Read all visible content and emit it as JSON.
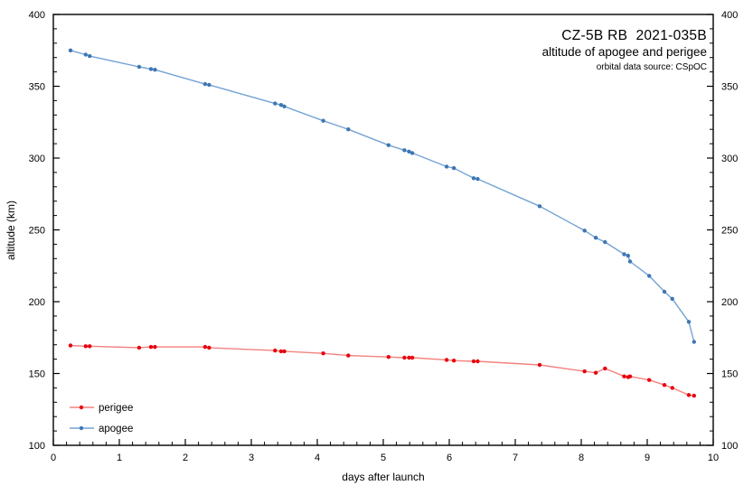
{
  "chart_data": {
    "type": "line",
    "title": "CZ-5B RB  2021-035B",
    "subtitle": "altitude of apogee and perigee",
    "source_note": "orbital data source: CSpOC",
    "xlabel": "days after launch",
    "ylabel": "altitude (km)",
    "xlim": [
      0,
      10
    ],
    "ylim": [
      100,
      400
    ],
    "x_major_ticks": [
      0,
      1,
      2,
      3,
      4,
      5,
      6,
      7,
      8,
      9,
      10
    ],
    "x_minor_step": 0.2,
    "y_major_ticks": [
      100,
      150,
      200,
      250,
      300,
      350,
      400
    ],
    "y_minor_step": 10,
    "grid": false,
    "legend_position": "bottom-left",
    "axis_color": "#000000",
    "x": [
      0.26,
      0.49,
      0.55,
      1.3,
      1.48,
      1.54,
      2.3,
      2.36,
      3.36,
      3.45,
      3.5,
      4.09,
      4.47,
      5.08,
      5.32,
      5.39,
      5.44,
      5.96,
      6.07,
      6.37,
      6.43,
      7.37,
      8.05,
      8.22,
      8.36,
      8.65,
      8.71,
      8.74,
      9.03,
      9.26,
      9.38,
      9.63,
      9.71
    ],
    "series": [
      {
        "name": "perigee",
        "marker_color": "#e8000d",
        "line_color": "#f4827f",
        "values": [
          169.5,
          169,
          169,
          168,
          168.5,
          168.5,
          168.5,
          168,
          166,
          165.5,
          165.5,
          164,
          162.5,
          161.5,
          161,
          161,
          161,
          159.5,
          159,
          158.5,
          158.5,
          156,
          151.5,
          150.5,
          153.5,
          148,
          147.5,
          148,
          145.5,
          142,
          140,
          135,
          134.5
        ]
      },
      {
        "name": "apogee",
        "marker_color": "#3d76b3",
        "line_color": "#74a3d4",
        "values": [
          375,
          372,
          371,
          363.5,
          362,
          361.5,
          351.5,
          351,
          338,
          337,
          336,
          326,
          320,
          309,
          305.5,
          304.5,
          303.5,
          294,
          293,
          286,
          285.5,
          266.5,
          249.5,
          244.5,
          241.5,
          233,
          232,
          228,
          218,
          207,
          202,
          186,
          172
        ]
      }
    ]
  }
}
